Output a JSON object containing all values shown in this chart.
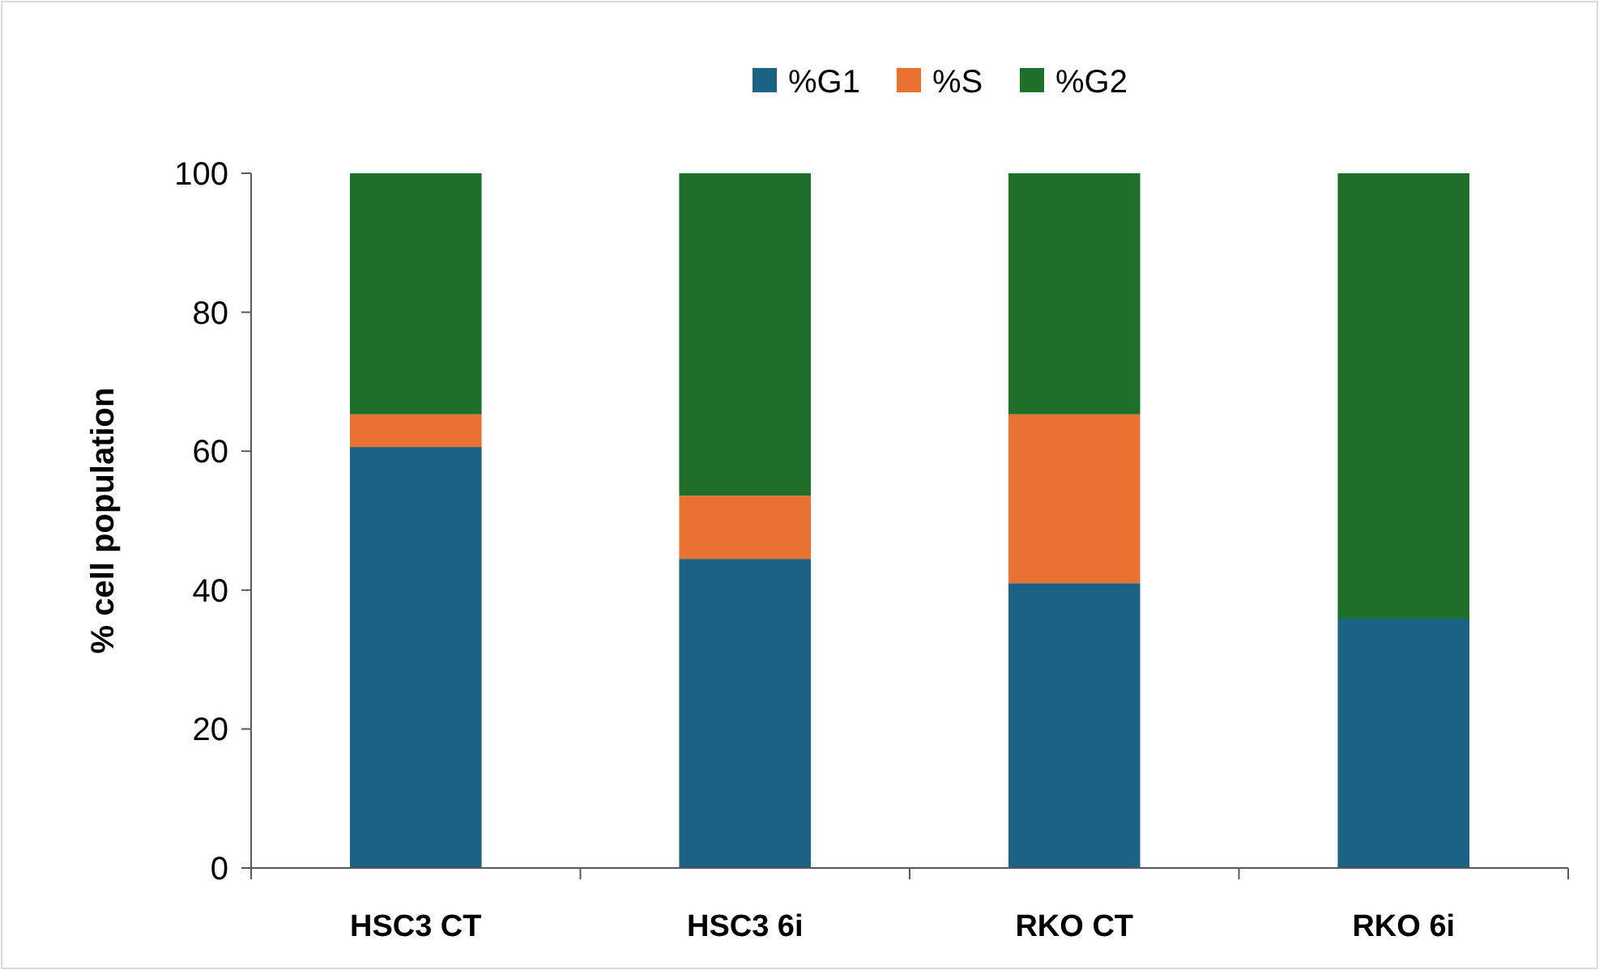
{
  "chart_data": {
    "type": "bar",
    "stacked": true,
    "ylabel": "% cell population",
    "categories": [
      "HSC3 CT",
      "HSC3 6i",
      "RKO CT",
      "RKO 6i"
    ],
    "series": [
      {
        "name": "%G1",
        "color": "#1b6284",
        "values": [
          60.6,
          44.5,
          41.0,
          35.9
        ]
      },
      {
        "name": "%S",
        "color": "#e97132",
        "values": [
          4.7,
          9.1,
          24.3,
          0
        ]
      },
      {
        "name": "%G2",
        "color": "#1e6f2a",
        "values": [
          34.7,
          46.4,
          34.7,
          64.1
        ]
      }
    ],
    "ylim": [
      0,
      100
    ],
    "yticks": [
      0,
      20,
      40,
      60,
      80,
      100
    ],
    "legend": "top"
  }
}
